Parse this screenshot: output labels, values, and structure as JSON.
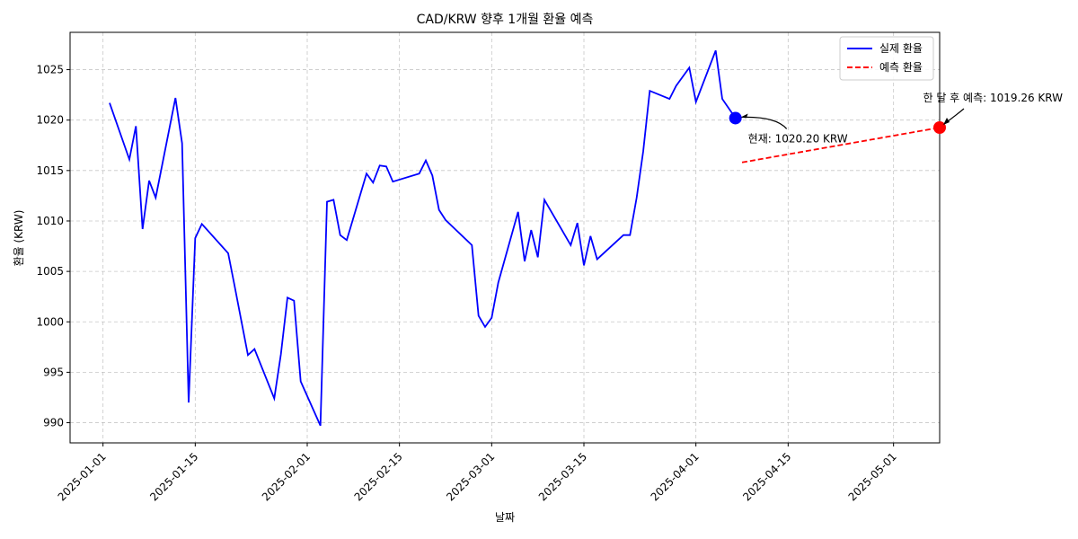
{
  "chart_data": {
    "type": "line",
    "title": "CAD/KRW 향후 1개월 환율 예측",
    "xlabel": "날짜",
    "ylabel": "환율 (KRW)",
    "x_range": [
      "2024-12-27",
      "2025-05-08"
    ],
    "ylim": [
      988,
      1028.7
    ],
    "x_ticks": [
      "2025-01-01",
      "2025-01-15",
      "2025-02-01",
      "2025-02-15",
      "2025-03-01",
      "2025-03-15",
      "2025-04-01",
      "2025-04-15",
      "2025-05-01"
    ],
    "y_ticks": [
      990,
      995,
      1000,
      1005,
      1010,
      1015,
      1020,
      1025
    ],
    "grid": true,
    "legend_position": "top-right",
    "series": [
      {
        "name": "실제 환율",
        "color": "#0000ff",
        "style": "solid",
        "points": [
          [
            "2025-01-02",
            1021.7
          ],
          [
            "2025-01-05",
            1016.1
          ],
          [
            "2025-01-06",
            1019.4
          ],
          [
            "2025-01-07",
            1009.2
          ],
          [
            "2025-01-08",
            1014.0
          ],
          [
            "2025-01-09",
            1012.3
          ],
          [
            "2025-01-12",
            1022.2
          ],
          [
            "2025-01-13",
            1017.7
          ],
          [
            "2025-01-14",
            992.0
          ],
          [
            "2025-01-15",
            1008.3
          ],
          [
            "2025-01-16",
            1009.7
          ],
          [
            "2025-01-20",
            1006.8
          ],
          [
            "2025-01-21",
            1003.5
          ],
          [
            "2025-01-23",
            996.7
          ],
          [
            "2025-01-24",
            997.3
          ],
          [
            "2025-01-27",
            992.4
          ],
          [
            "2025-01-28",
            996.8
          ],
          [
            "2025-01-29",
            1002.4
          ],
          [
            "2025-01-30",
            1002.1
          ],
          [
            "2025-01-31",
            994.1
          ],
          [
            "2025-02-03",
            989.7
          ],
          [
            "2025-02-04",
            1011.9
          ],
          [
            "2025-02-05",
            1012.1
          ],
          [
            "2025-02-06",
            1008.6
          ],
          [
            "2025-02-07",
            1008.1
          ],
          [
            "2025-02-10",
            1014.7
          ],
          [
            "2025-02-11",
            1013.8
          ],
          [
            "2025-02-12",
            1015.5
          ],
          [
            "2025-02-13",
            1015.4
          ],
          [
            "2025-02-14",
            1013.9
          ],
          [
            "2025-02-18",
            1014.7
          ],
          [
            "2025-02-19",
            1016.0
          ],
          [
            "2025-02-20",
            1014.5
          ],
          [
            "2025-02-21",
            1011.1
          ],
          [
            "2025-02-22",
            1010.1
          ],
          [
            "2025-02-26",
            1007.6
          ],
          [
            "2025-02-27",
            1000.6
          ],
          [
            "2025-02-28",
            999.5
          ],
          [
            "2025-03-01",
            1000.4
          ],
          [
            "2025-03-02",
            1003.9
          ],
          [
            "2025-03-05",
            1010.9
          ],
          [
            "2025-03-06",
            1006.0
          ],
          [
            "2025-03-07",
            1009.1
          ],
          [
            "2025-03-08",
            1006.4
          ],
          [
            "2025-03-09",
            1012.1
          ],
          [
            "2025-03-13",
            1007.6
          ],
          [
            "2025-03-14",
            1009.8
          ],
          [
            "2025-03-15",
            1005.6
          ],
          [
            "2025-03-16",
            1008.5
          ],
          [
            "2025-03-17",
            1006.2
          ],
          [
            "2025-03-21",
            1008.6
          ],
          [
            "2025-03-22",
            1008.6
          ],
          [
            "2025-03-23",
            1012.3
          ],
          [
            "2025-03-24",
            1016.9
          ],
          [
            "2025-03-25",
            1022.9
          ],
          [
            "2025-03-28",
            1022.1
          ],
          [
            "2025-03-29",
            1023.4
          ],
          [
            "2025-03-31",
            1025.2
          ],
          [
            "2025-04-01",
            1021.8
          ],
          [
            "2025-04-04",
            1026.9
          ],
          [
            "2025-04-05",
            1022.1
          ],
          [
            "2025-04-07",
            1020.2
          ]
        ]
      },
      {
        "name": "예측 환율",
        "color": "#ff0000",
        "style": "dashed",
        "points": [
          [
            "2025-04-08",
            1015.8
          ],
          [
            "2025-05-08",
            1019.26
          ]
        ]
      }
    ],
    "markers": [
      {
        "x": "2025-04-07",
        "y": 1020.2,
        "color": "#0000ff"
      },
      {
        "x": "2025-05-08",
        "y": 1019.26,
        "color": "#ff0000"
      }
    ],
    "annotations": [
      {
        "text": "현재: 1020.20 KRW",
        "x": "2025-04-07",
        "y": 1020.2
      },
      {
        "text": "한 달 후 예측: 1019.26 KRW",
        "x": "2025-05-08",
        "y": 1019.26
      }
    ]
  }
}
